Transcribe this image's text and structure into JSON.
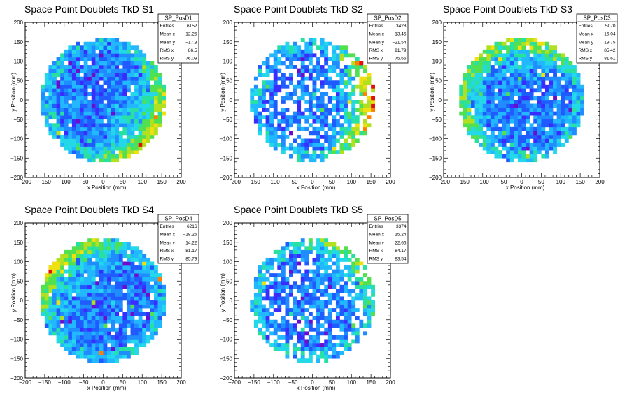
{
  "chart_data": [
    {
      "type": "heatmap",
      "title": "Space Point Doublets TkD S1",
      "xlabel": "x Position (mm)",
      "ylabel": "y Position (mm)",
      "xlim": [
        -200,
        200
      ],
      "ylim": [
        -200,
        200
      ],
      "xticks": [
        -200,
        -150,
        -100,
        -50,
        0,
        50,
        100,
        150,
        200
      ],
      "yticks": [
        -200,
        -150,
        -100,
        -50,
        0,
        50,
        100,
        150,
        200
      ],
      "radius": 160,
      "bin_size": 10,
      "stats": {
        "name": "SP_PosD1",
        "rows": [
          [
            "Entries",
            "6152"
          ],
          [
            "Mean x",
            "12.25"
          ],
          [
            "Mean y",
            "-17.3"
          ],
          [
            "RMS x",
            "86.5"
          ],
          [
            "RMS y",
            "76.09"
          ]
        ]
      },
      "fill": {
        "empty_fraction": 0.05,
        "hot_quadrants": [
          "lower-right"
        ]
      }
    },
    {
      "type": "heatmap",
      "title": "Space Point Doublets TkD S2",
      "xlabel": "x Position (mm)",
      "ylabel": "y Position (mm)",
      "xlim": [
        -200,
        200
      ],
      "ylim": [
        -200,
        200
      ],
      "xticks": [
        -200,
        -150,
        -100,
        -50,
        0,
        50,
        100,
        150,
        200
      ],
      "yticks": [
        -200,
        -150,
        -100,
        -50,
        0,
        50,
        100,
        150,
        200
      ],
      "radius": 160,
      "bin_size": 10,
      "stats": {
        "name": "SP_PosD2",
        "rows": [
          [
            "Entries",
            "3428"
          ],
          [
            "Mean x",
            "13.45"
          ],
          [
            "Mean y",
            "-21.54"
          ],
          [
            "RMS x",
            "91.79"
          ],
          [
            "RMS y",
            "75.66"
          ]
        ]
      },
      "fill": {
        "empty_fraction": 0.3,
        "hot_quadrants": [
          "right"
        ]
      }
    },
    {
      "type": "heatmap",
      "title": "Space Point Doublets TkD S3",
      "xlabel": "x Position (mm)",
      "ylabel": "y Position (mm)",
      "xlim": [
        -200,
        200
      ],
      "ylim": [
        -200,
        200
      ],
      "xticks": [
        -200,
        -150,
        -100,
        -50,
        0,
        50,
        100,
        150,
        200
      ],
      "yticks": [
        -200,
        -150,
        -100,
        -50,
        0,
        50,
        100,
        150,
        200
      ],
      "radius": 160,
      "bin_size": 10,
      "stats": {
        "name": "SP_PosD3",
        "rows": [
          [
            "Entries",
            "5070"
          ],
          [
            "Mean x",
            "-16.04"
          ],
          [
            "Mean y",
            "19.75"
          ],
          [
            "RMS x",
            "85.42"
          ],
          [
            "RMS y",
            "81.61"
          ]
        ]
      },
      "fill": {
        "empty_fraction": 0.08,
        "hot_quadrants": [
          "top",
          "left"
        ]
      }
    },
    {
      "type": "heatmap",
      "title": "Space Point Doublets TkD S4",
      "xlabel": "x Position (mm)",
      "ylabel": "y Position (mm)",
      "xlim": [
        -200,
        200
      ],
      "ylim": [
        -200,
        200
      ],
      "xticks": [
        -200,
        -150,
        -100,
        -50,
        0,
        50,
        100,
        150,
        200
      ],
      "yticks": [
        -200,
        -150,
        -100,
        -50,
        0,
        50,
        100,
        150,
        200
      ],
      "radius": 160,
      "bin_size": 10,
      "stats": {
        "name": "SP_PosD4",
        "rows": [
          [
            "Entries",
            "6216"
          ],
          [
            "Mean x",
            "-18.26"
          ],
          [
            "Mean y",
            "14.22"
          ],
          [
            "RMS x",
            "81.17"
          ],
          [
            "RMS y",
            "85.79"
          ]
        ]
      },
      "fill": {
        "empty_fraction": 0.04,
        "hot_quadrants": [
          "upper-left"
        ]
      }
    },
    {
      "type": "heatmap",
      "title": "Space Point Doublets TkD S5",
      "xlabel": "x Position (mm)",
      "ylabel": "y Position (mm)",
      "xlim": [
        -200,
        200
      ],
      "ylim": [
        -200,
        200
      ],
      "xticks": [
        -200,
        -150,
        -100,
        -50,
        0,
        50,
        100,
        150,
        200
      ],
      "yticks": [
        -200,
        -150,
        -100,
        -50,
        0,
        50,
        100,
        150,
        200
      ],
      "radius": 160,
      "bin_size": 10,
      "stats": {
        "name": "SP_PosD5",
        "rows": [
          [
            "Entries",
            "3374"
          ],
          [
            "Mean x",
            "15.24"
          ],
          [
            "Mean y",
            "22.66"
          ],
          [
            "RMS x",
            "84.17"
          ],
          [
            "RMS y",
            "83.54"
          ]
        ]
      },
      "fill": {
        "empty_fraction": 0.28,
        "hot_quadrants": [
          "upper-right"
        ]
      }
    }
  ],
  "colors": {
    "palette": [
      "#6a0dcc",
      "#3a2bff",
      "#1f5bff",
      "#1f8cff",
      "#22b8ff",
      "#23d8e8",
      "#28e0a0",
      "#50e050",
      "#b0e020",
      "#f0e010",
      "#ff8000",
      "#e01010"
    ],
    "background": "#ffffff",
    "frame": "#000000"
  }
}
